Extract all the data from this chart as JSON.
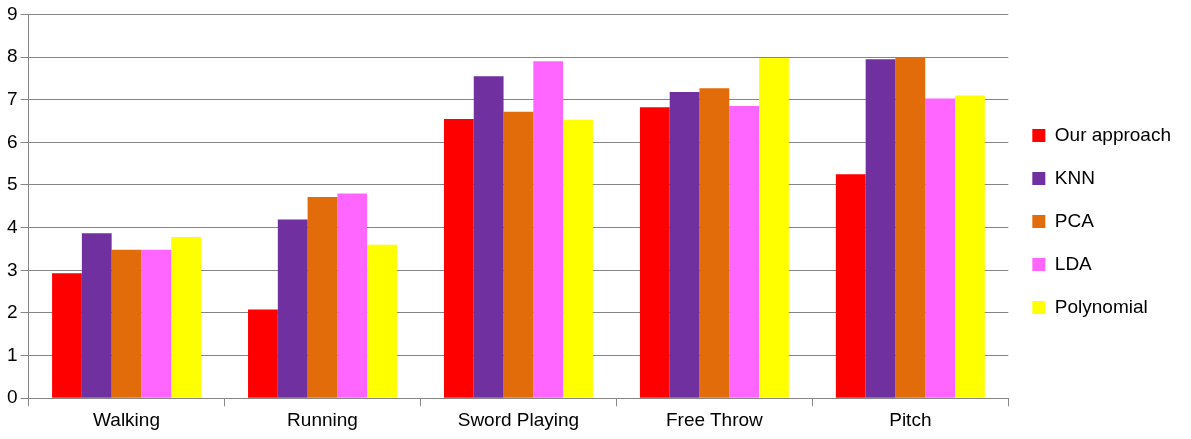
{
  "chart_data": {
    "type": "bar",
    "categories": [
      "Walking",
      "Running",
      "Sword Playing",
      "Free Throw",
      "Pitch"
    ],
    "series": [
      {
        "name": "Our approach",
        "color": "#ff0000",
        "values": [
          2.93,
          2.08,
          6.55,
          6.82,
          5.25
        ]
      },
      {
        "name": "KNN",
        "color": "#7030a0",
        "values": [
          3.87,
          4.19,
          7.55,
          7.18,
          7.95
        ]
      },
      {
        "name": "PCA",
        "color": "#e36c0a",
        "values": [
          3.48,
          4.72,
          6.72,
          7.27,
          8.0
        ]
      },
      {
        "name": "LDA",
        "color": "#ff66ff",
        "values": [
          3.48,
          4.8,
          7.9,
          6.85,
          7.03
        ]
      },
      {
        "name": "Polynomial",
        "color": "#ffff00",
        "values": [
          3.78,
          3.6,
          6.53,
          7.98,
          7.1
        ]
      }
    ],
    "ylim": [
      0,
      9
    ],
    "yticks": [
      0,
      1,
      2,
      3,
      4,
      5,
      6,
      7,
      8,
      9
    ],
    "grid": "y",
    "legend": "right"
  }
}
